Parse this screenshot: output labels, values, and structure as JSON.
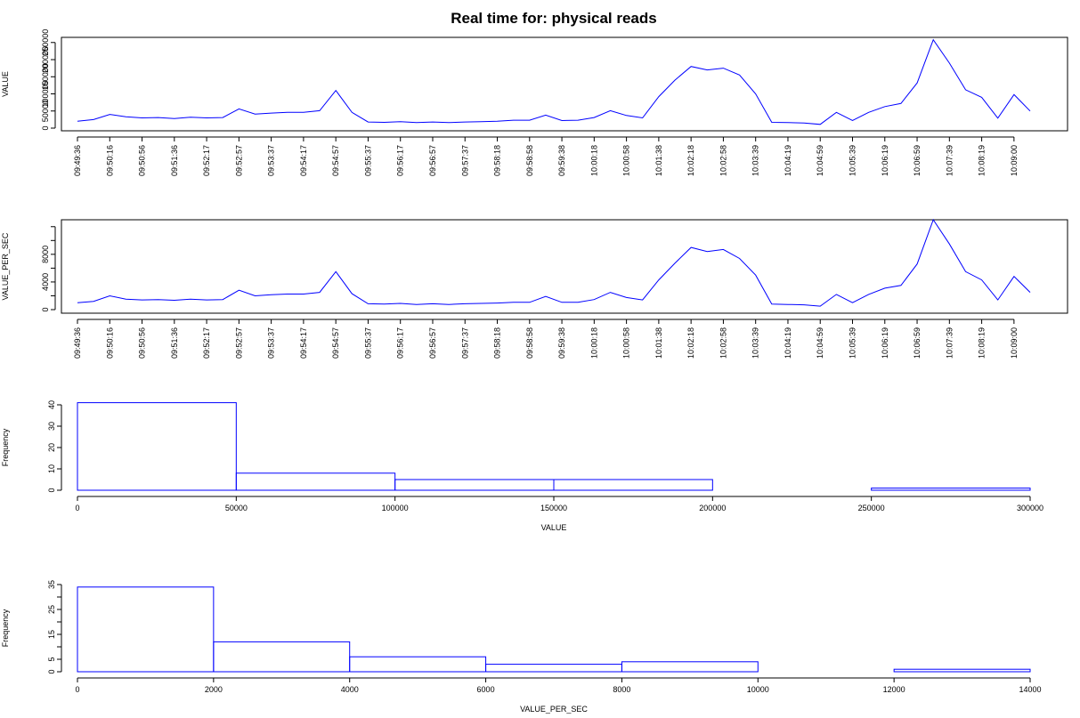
{
  "title": "Real time for: physical reads",
  "chart_data": [
    {
      "type": "line",
      "ylabel": "VALUE",
      "xlabel": "",
      "ylim": [
        0,
        265000
      ],
      "yticks": [
        0,
        50000,
        100000,
        150000,
        200000,
        250000
      ],
      "ytick_labels": [
        "0",
        "50000",
        "100000",
        "150000",
        "200000",
        "250000"
      ],
      "xtick_labels": [
        "09:49:36",
        "09:50:16",
        "09:50:56",
        "09:51:36",
        "09:52:17",
        "09:52:57",
        "09:53:37",
        "09:54:17",
        "09:54:57",
        "09:55:37",
        "09:56:17",
        "09:56:57",
        "09:57:37",
        "09:58:18",
        "09:58:58",
        "09:59:38",
        "10:00:18",
        "10:00:58",
        "10:01:38",
        "10:02:18",
        "10:02:58",
        "10:03:39",
        "10:04:19",
        "10:04:59",
        "10:05:39",
        "10:06:19",
        "10:06:59",
        "10:07:39",
        "10:08:19",
        "10:09:00"
      ],
      "series": [
        {
          "color": "#0000ff",
          "values": [
            20000,
            25000,
            40000,
            33000,
            30000,
            31000,
            28000,
            32000,
            30000,
            31000,
            56000,
            41000,
            44000,
            46000,
            46000,
            51000,
            110000,
            46000,
            18000,
            17000,
            19000,
            16000,
            18000,
            16000,
            18000,
            19000,
            20000,
            23000,
            23000,
            38000,
            22000,
            23000,
            31000,
            51000,
            37000,
            30000,
            92000,
            140000,
            180000,
            170000,
            175000,
            155000,
            100000,
            17000,
            16000,
            15000,
            11000,
            46000,
            22000,
            46000,
            63000,
            72000,
            132000,
            258000,
            190000,
            112000,
            90000,
            29000,
            98000,
            50000
          ]
        }
      ]
    },
    {
      "type": "line",
      "ylabel": "VALUE_PER_SEC",
      "xlabel": "",
      "ylim": [
        0,
        13000
      ],
      "yticks": [
        0,
        2000,
        4000,
        6000,
        8000,
        10000,
        12000
      ],
      "ytick_labels": [
        "0",
        "",
        "4000",
        "",
        "8000",
        "",
        ""
      ],
      "xtick_labels": [
        "09:49:36",
        "09:50:16",
        "09:50:56",
        "09:51:36",
        "09:52:17",
        "09:52:57",
        "09:53:37",
        "09:54:17",
        "09:54:57",
        "09:55:37",
        "09:56:17",
        "09:56:57",
        "09:57:37",
        "09:58:18",
        "09:58:58",
        "09:59:38",
        "10:00:18",
        "10:00:58",
        "10:01:38",
        "10:02:18",
        "10:02:58",
        "10:03:39",
        "10:04:19",
        "10:04:59",
        "10:05:39",
        "10:06:19",
        "10:06:59",
        "10:07:39",
        "10:08:19",
        "10:09:00"
      ],
      "series": [
        {
          "color": "#0000ff",
          "values": [
            1000,
            1200,
            2000,
            1500,
            1400,
            1450,
            1350,
            1500,
            1400,
            1450,
            2800,
            2000,
            2150,
            2250,
            2250,
            2500,
            5500,
            2300,
            850,
            800,
            900,
            750,
            850,
            750,
            850,
            900,
            950,
            1050,
            1050,
            1900,
            1050,
            1050,
            1450,
            2500,
            1750,
            1400,
            4300,
            6700,
            9000,
            8400,
            8700,
            7400,
            5000,
            800,
            750,
            700,
            500,
            2200,
            1000,
            2200,
            3100,
            3500,
            6600,
            13000,
            9500,
            5500,
            4300,
            1400,
            4800,
            2500
          ]
        }
      ]
    },
    {
      "type": "bar",
      "subtype": "histogram",
      "xlabel": "VALUE",
      "ylabel": "Frequency",
      "bin_edges": [
        0,
        50000,
        100000,
        150000,
        200000,
        250000,
        300000
      ],
      "values": [
        41,
        8,
        5,
        5,
        0,
        1
      ],
      "xlim": [
        0,
        300000
      ],
      "ylim": [
        0,
        40
      ],
      "xticks": [
        0,
        50000,
        100000,
        150000,
        200000,
        250000,
        300000
      ],
      "xtick_labels": [
        "0",
        "50000",
        "100000",
        "150000",
        "200000",
        "250000",
        "300000"
      ],
      "yticks": [
        0,
        10,
        20,
        30,
        40
      ],
      "ytick_labels": [
        "0",
        "10",
        "20",
        "30",
        "40"
      ],
      "color": "#0000ff"
    },
    {
      "type": "bar",
      "subtype": "histogram",
      "xlabel": "VALUE_PER_SEC",
      "ylabel": "Frequency",
      "bin_edges": [
        0,
        2000,
        4000,
        6000,
        8000,
        10000,
        12000,
        14000
      ],
      "values": [
        34,
        12,
        6,
        3,
        4,
        0,
        1
      ],
      "xlim": [
        0,
        14000
      ],
      "ylim": [
        0,
        35
      ],
      "xticks": [
        0,
        2000,
        4000,
        6000,
        8000,
        10000,
        12000,
        14000
      ],
      "xtick_labels": [
        "0",
        "2000",
        "4000",
        "6000",
        "8000",
        "10000",
        "12000",
        "14000"
      ],
      "yticks": [
        0,
        5,
        10,
        15,
        20,
        25,
        30,
        35
      ],
      "ytick_labels": [
        "0",
        "5",
        "",
        "15",
        "",
        "25",
        "",
        "35"
      ],
      "color": "#0000ff"
    }
  ]
}
